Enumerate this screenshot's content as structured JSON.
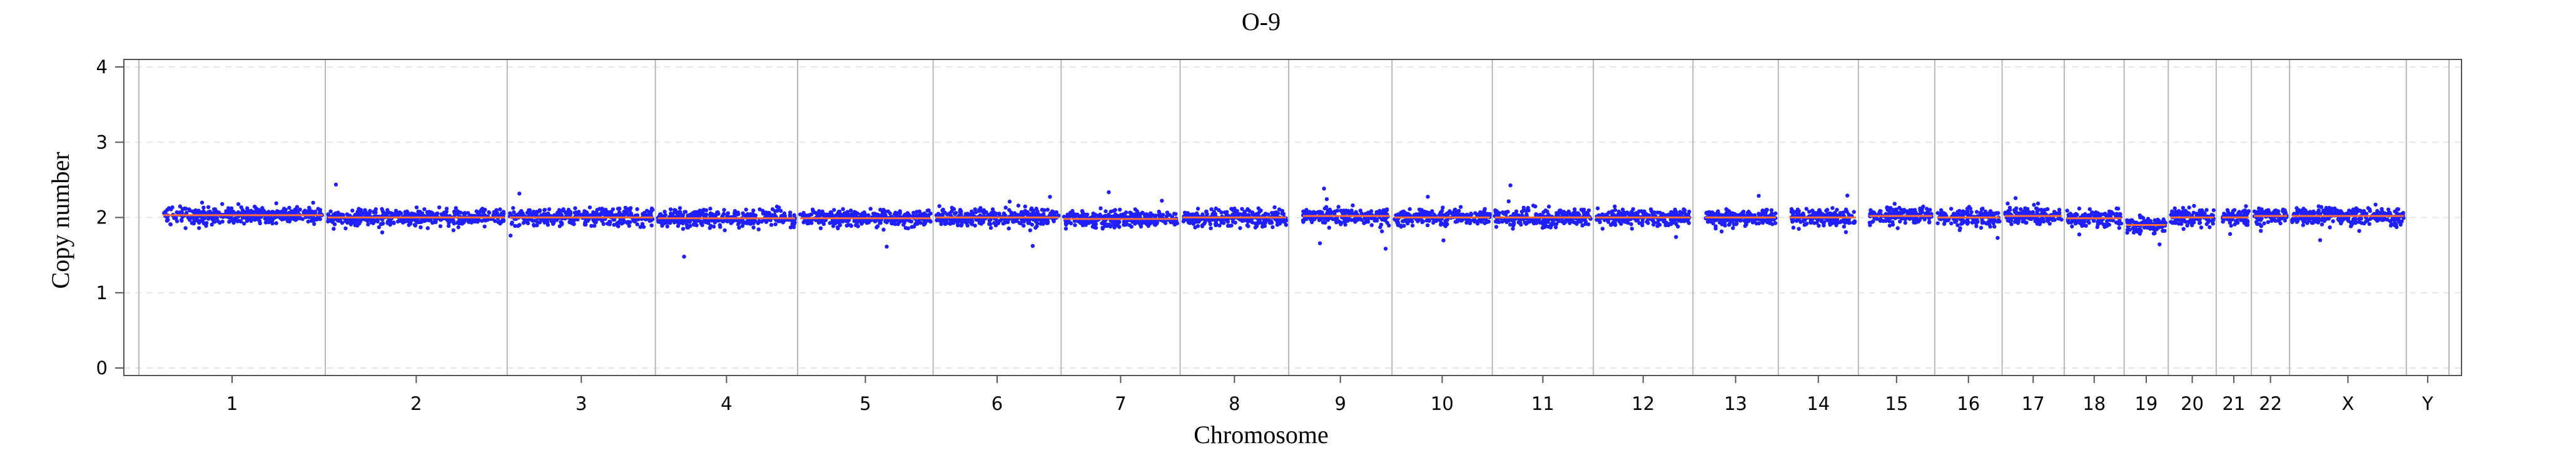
{
  "chart_data": {
    "type": "scatter",
    "title": "O-9",
    "xlabel": "Chromosome",
    "ylabel": "Copy number",
    "ylim": [
      0,
      4
    ],
    "yticks": [
      "0",
      "1",
      "2",
      "3",
      "4"
    ],
    "grid": true,
    "chromosomes": [
      "1",
      "2",
      "3",
      "4",
      "5",
      "6",
      "7",
      "8",
      "9",
      "10",
      "11",
      "12",
      "13",
      "14",
      "15",
      "16",
      "17",
      "18",
      "19",
      "20",
      "21",
      "22",
      "X",
      "Y"
    ],
    "chromosome_lengths_mb": [
      249,
      243,
      198,
      190,
      181,
      171,
      159,
      145,
      138,
      134,
      135,
      133,
      114,
      107,
      102,
      90,
      83,
      80,
      59,
      64,
      47,
      51,
      156,
      57
    ],
    "segment_copy_number": [
      2.03,
      2.0,
      2.0,
      1.99,
      1.99,
      2.0,
      1.98,
      2.0,
      2.02,
      2.0,
      2.0,
      2.0,
      2.0,
      2.0,
      2.02,
      2.0,
      2.02,
      1.99,
      1.9,
      2.0,
      2.0,
      2.02,
      2.02,
      null
    ],
    "point_spread": 0.1,
    "colors": {
      "points": "#1f1fff",
      "segment": "#ff6a3a",
      "divider": "#b8b8b8",
      "grid": "#e6e6e6"
    }
  }
}
